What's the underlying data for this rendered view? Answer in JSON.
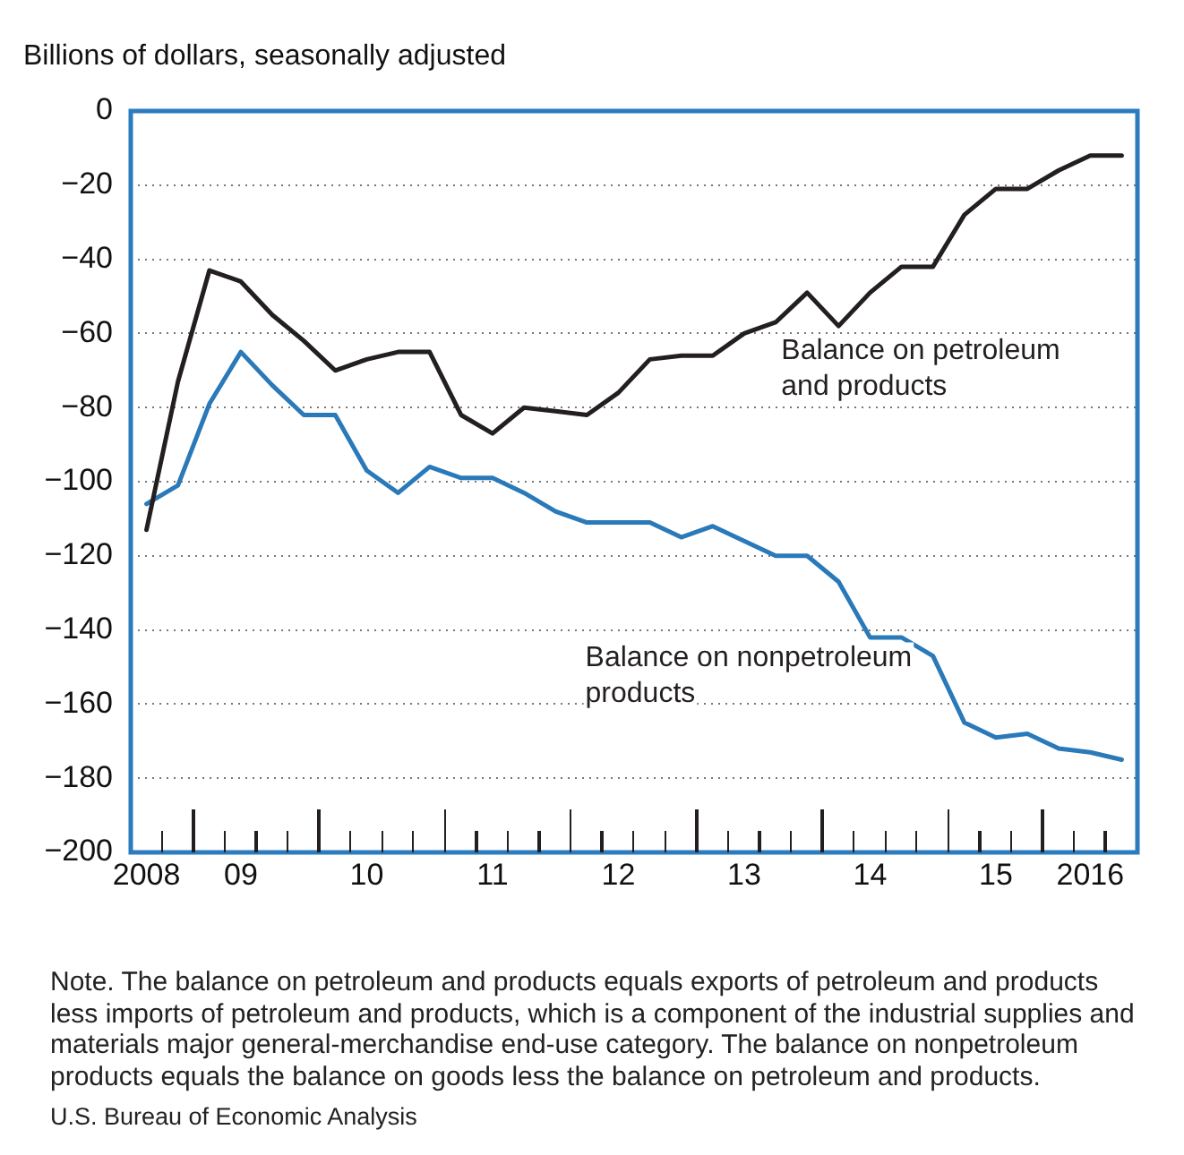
{
  "chart_data": {
    "type": "line",
    "ylabel": "Billions of dollars, seasonally adjusted",
    "categories": [
      "2008",
      null,
      null,
      "09",
      null,
      null,
      null,
      "10",
      null,
      null,
      null,
      "11",
      null,
      null,
      null,
      "12",
      null,
      null,
      null,
      "13",
      null,
      null,
      null,
      "14",
      null,
      null,
      null,
      "15",
      null,
      null,
      "2016",
      null
    ],
    "series": [
      {
        "name": "Balance on petroleum and products",
        "color": "#231f20",
        "values": [
          -113,
          -73,
          -43,
          -46,
          -55,
          -62,
          -70,
          -67,
          -65,
          -65,
          -82,
          -87,
          -80,
          -81,
          -82,
          -76,
          -67,
          -66,
          -66,
          -60,
          -57,
          -49,
          -58,
          -49,
          -42,
          -42,
          -28,
          -21,
          -21,
          -16,
          -12,
          -12
        ]
      },
      {
        "name": "Balance on nonpetroleum products",
        "color": "#2a79b9",
        "values": [
          -106,
          -101,
          -79,
          -65,
          -74,
          -82,
          -82,
          -97,
          -103,
          -96,
          -99,
          -99,
          -103,
          -108,
          -111,
          -111,
          -111,
          -115,
          -112,
          -116,
          -120,
          -120,
          -127,
          -142,
          -142,
          -147,
          -165,
          -169,
          -168,
          -172,
          -173,
          -175
        ]
      }
    ],
    "ylim": [
      -200,
      0
    ],
    "yticks": [
      -200,
      -180,
      -160,
      -140,
      -120,
      -100,
      -80,
      -60,
      -40,
      -20,
      0
    ],
    "grid": "y",
    "legend": false,
    "marker": "none",
    "line_style": "solid",
    "annotations": [
      "Note. The balance on petroleum and products equals exports of petroleum and products less imports of petroleum and products, which is a component of the industrial supplies and materials major general-merchandise end-use category. The balance on nonpetroleum products equals the balance on goods less the balance on petroleum and products.",
      "U.S. Bureau of Economic Analysis"
    ]
  }
}
